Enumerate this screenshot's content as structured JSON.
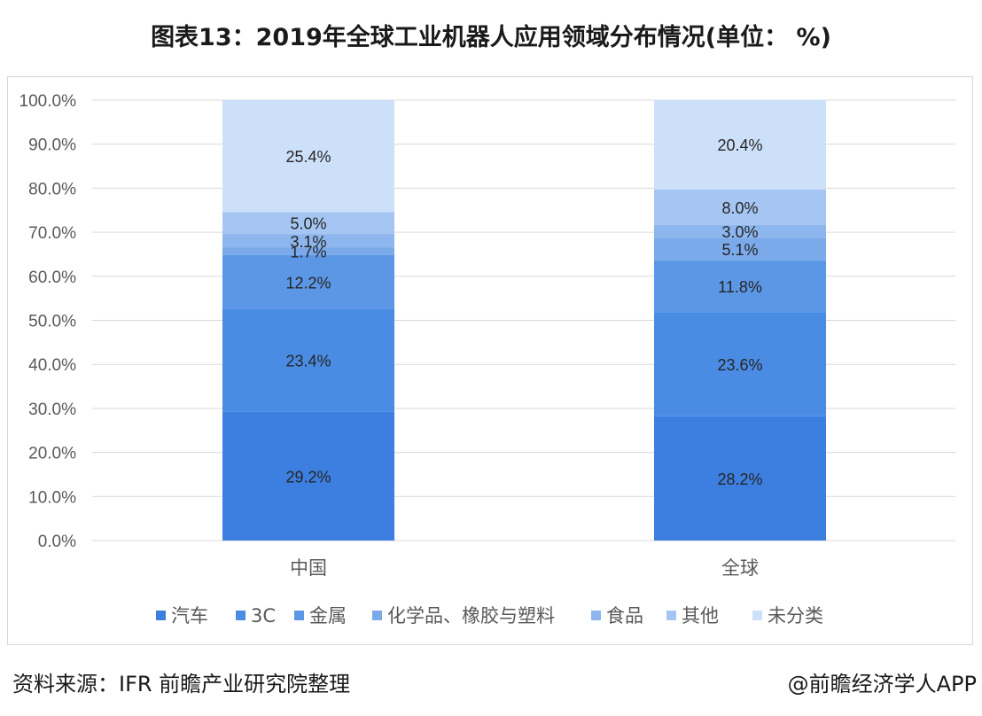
{
  "title": "图表13：2019年全球工业机器人应用领域分布情况(单位： %)",
  "footer": {
    "source_label": "资料来源：",
    "source_text": "IFR 前瞻产业研究院整理",
    "credit": "@前瞻经济学人APP"
  },
  "colors": {
    "汽车": "#3d7fe0",
    "3C": "#4a8be3",
    "金属": "#5c97e6",
    "化学品、橡胶与塑料": "#7aaaea",
    "食品": "#8db6ee",
    "其他": "#a5c6f2",
    "未分类": "#cde0f9",
    "grid": "#d9d9d9",
    "axis_text": "#595959"
  },
  "chart_data": {
    "type": "bar",
    "stacked": true,
    "categories": [
      "中国",
      "全球"
    ],
    "series": [
      {
        "name": "汽车",
        "values": [
          29.2,
          28.2
        ],
        "labels": [
          "29.2%",
          "28.2%"
        ]
      },
      {
        "name": "3C",
        "values": [
          23.4,
          23.6
        ],
        "labels": [
          "23.4%",
          "23.6%"
        ]
      },
      {
        "name": "金属",
        "values": [
          12.2,
          11.8
        ],
        "labels": [
          "12.2%",
          "11.8%"
        ]
      },
      {
        "name": "化学品、橡胶与塑料",
        "values": [
          1.7,
          5.1
        ],
        "labels": [
          "1.7%",
          "5.1%"
        ]
      },
      {
        "name": "食品",
        "values": [
          3.1,
          3.0
        ],
        "labels": [
          "3.1%",
          "3.0%"
        ]
      },
      {
        "name": "其他",
        "values": [
          5.0,
          8.0
        ],
        "labels": [
          "5.0%",
          "8.0%"
        ]
      },
      {
        "name": "未分类",
        "values": [
          25.4,
          20.4
        ],
        "labels": [
          "25.4%",
          "20.4%"
        ]
      }
    ],
    "ylim": [
      0,
      100
    ],
    "yticks": [
      "0.0%",
      "10.0%",
      "20.0%",
      "30.0%",
      "40.0%",
      "50.0%",
      "60.0%",
      "70.0%",
      "80.0%",
      "90.0%",
      "100.0%"
    ],
    "grid": true,
    "legend": "bottom"
  }
}
